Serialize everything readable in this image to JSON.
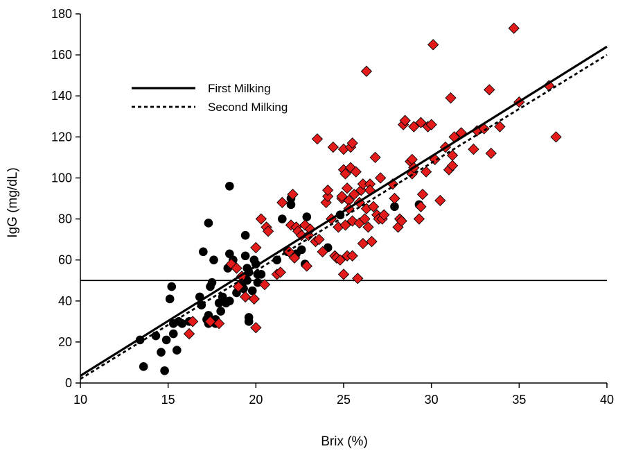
{
  "chart_data": {
    "type": "scatter",
    "xlabel": "Brix (%)",
    "ylabel": "IgG (mg/dL)",
    "xlim": [
      10,
      40
    ],
    "ylim": [
      0,
      180
    ],
    "x_ticks": [
      10,
      15,
      20,
      25,
      30,
      35,
      40
    ],
    "y_ticks": [
      0,
      20,
      40,
      60,
      80,
      100,
      120,
      140,
      160,
      180
    ],
    "grid": false,
    "legend_position": "upper-left",
    "legend": [
      {
        "label": "First Milking",
        "style": "solid"
      },
      {
        "label": "Second Milking",
        "style": "dotted"
      }
    ],
    "threshold": {
      "y": 50
    },
    "regression_lines": [
      {
        "style": "solid",
        "x": [
          10,
          40
        ],
        "y": [
          3.5,
          164
        ]
      },
      {
        "style": "dotted",
        "x": [
          10,
          40
        ],
        "y": [
          2,
          160
        ]
      }
    ],
    "series": [
      {
        "marker": "circle",
        "color": "#000000",
        "points": [
          [
            13.4,
            21
          ],
          [
            13.6,
            8
          ],
          [
            14.3,
            23
          ],
          [
            14.6,
            15
          ],
          [
            14.8,
            6
          ],
          [
            14.9,
            21
          ],
          [
            15.1,
            41
          ],
          [
            15.2,
            47
          ],
          [
            15.3,
            29
          ],
          [
            15.3,
            24
          ],
          [
            15.5,
            16
          ],
          [
            15.6,
            30
          ],
          [
            15.8,
            29
          ],
          [
            16.2,
            30
          ],
          [
            16.8,
            42
          ],
          [
            16.9,
            38
          ],
          [
            17.0,
            64
          ],
          [
            17.2,
            31
          ],
          [
            17.3,
            29
          ],
          [
            17.3,
            33
          ],
          [
            17.3,
            78
          ],
          [
            17.4,
            47
          ],
          [
            17.5,
            49
          ],
          [
            17.6,
            60
          ],
          [
            17.7,
            29
          ],
          [
            17.7,
            31
          ],
          [
            17.9,
            39
          ],
          [
            18.0,
            35
          ],
          [
            18.1,
            42
          ],
          [
            18.2,
            40
          ],
          [
            18.3,
            39
          ],
          [
            18.4,
            56
          ],
          [
            18.5,
            96
          ],
          [
            18.5,
            63
          ],
          [
            18.5,
            40
          ],
          [
            18.7,
            60
          ],
          [
            18.9,
            44
          ],
          [
            19.1,
            48
          ],
          [
            19.2,
            48
          ],
          [
            19.3,
            46
          ],
          [
            19.4,
            72
          ],
          [
            19.4,
            62
          ],
          [
            19.5,
            56
          ],
          [
            19.5,
            50
          ],
          [
            19.6,
            54
          ],
          [
            19.6,
            32
          ],
          [
            19.6,
            30
          ],
          [
            19.8,
            45
          ],
          [
            19.9,
            60
          ],
          [
            20.0,
            58
          ],
          [
            20.1,
            53
          ],
          [
            20.1,
            49
          ],
          [
            20.3,
            53
          ],
          [
            21.2,
            60
          ],
          [
            21.5,
            80
          ],
          [
            21.8,
            64
          ],
          [
            22.0,
            90
          ],
          [
            22.0,
            87
          ],
          [
            22.3,
            63
          ],
          [
            22.6,
            65
          ],
          [
            22.8,
            58
          ],
          [
            22.9,
            81
          ],
          [
            24.1,
            66
          ],
          [
            24.8,
            82
          ],
          [
            27.9,
            86
          ],
          [
            29.3,
            87
          ]
        ]
      },
      {
        "marker": "diamond",
        "color": "#e31b1b",
        "points": [
          [
            16.2,
            24
          ],
          [
            16.4,
            30
          ],
          [
            17.4,
            30
          ],
          [
            17.9,
            29
          ],
          [
            18.6,
            58
          ],
          [
            18.9,
            56
          ],
          [
            19.0,
            47
          ],
          [
            19.2,
            52
          ],
          [
            19.4,
            42
          ],
          [
            19.9,
            41
          ],
          [
            20.0,
            27
          ],
          [
            20.0,
            66
          ],
          [
            20.3,
            80
          ],
          [
            20.5,
            48
          ],
          [
            20.6,
            76
          ],
          [
            20.7,
            74
          ],
          [
            21.2,
            53
          ],
          [
            21.4,
            54
          ],
          [
            21.5,
            88
          ],
          [
            21.9,
            64
          ],
          [
            22.0,
            77
          ],
          [
            22.1,
            92
          ],
          [
            22.2,
            61
          ],
          [
            22.3,
            76
          ],
          [
            22.4,
            74
          ],
          [
            22.6,
            72
          ],
          [
            22.8,
            77
          ],
          [
            22.9,
            57
          ],
          [
            23.0,
            72
          ],
          [
            23.1,
            75
          ],
          [
            23.4,
            69
          ],
          [
            23.5,
            119
          ],
          [
            23.6,
            70
          ],
          [
            23.8,
            64
          ],
          [
            24.0,
            88
          ],
          [
            24.1,
            91
          ],
          [
            24.1,
            94
          ],
          [
            24.3,
            80
          ],
          [
            24.4,
            115
          ],
          [
            24.5,
            62
          ],
          [
            24.6,
            61
          ],
          [
            24.7,
            76
          ],
          [
            24.8,
            60
          ],
          [
            24.9,
            90
          ],
          [
            24.9,
            91
          ],
          [
            25.0,
            53
          ],
          [
            25.0,
            114
          ],
          [
            25.0,
            104
          ],
          [
            25.1,
            77
          ],
          [
            25.1,
            102
          ],
          [
            25.2,
            62
          ],
          [
            25.2,
            95
          ],
          [
            25.3,
            89
          ],
          [
            25.3,
            85
          ],
          [
            25.4,
            115
          ],
          [
            25.4,
            105
          ],
          [
            25.5,
            117
          ],
          [
            25.5,
            62
          ],
          [
            25.5,
            79
          ],
          [
            25.6,
            92
          ],
          [
            25.7,
            103
          ],
          [
            25.8,
            51
          ],
          [
            25.9,
            78
          ],
          [
            25.9,
            88
          ],
          [
            26.0,
            94
          ],
          [
            26.1,
            68
          ],
          [
            26.1,
            97
          ],
          [
            26.2,
            80
          ],
          [
            26.3,
            85
          ],
          [
            26.3,
            152
          ],
          [
            26.4,
            76
          ],
          [
            26.5,
            97
          ],
          [
            26.5,
            94
          ],
          [
            26.6,
            69
          ],
          [
            26.7,
            86
          ],
          [
            26.8,
            110
          ],
          [
            26.9,
            82
          ],
          [
            27.0,
            80
          ],
          [
            27.1,
            100
          ],
          [
            27.2,
            80
          ],
          [
            27.3,
            82
          ],
          [
            27.8,
            97
          ],
          [
            27.9,
            90
          ],
          [
            28.1,
            76
          ],
          [
            28.2,
            80
          ],
          [
            28.3,
            79
          ],
          [
            28.4,
            126
          ],
          [
            28.5,
            128
          ],
          [
            28.8,
            108
          ],
          [
            28.9,
            109
          ],
          [
            28.9,
            102
          ],
          [
            29.0,
            125
          ],
          [
            29.0,
            105
          ],
          [
            29.3,
            80
          ],
          [
            29.4,
            86
          ],
          [
            29.4,
            127
          ],
          [
            29.5,
            92
          ],
          [
            29.7,
            103
          ],
          [
            29.8,
            125
          ],
          [
            30.0,
            126
          ],
          [
            30.1,
            165
          ],
          [
            30.2,
            109
          ],
          [
            30.5,
            89
          ],
          [
            30.8,
            115
          ],
          [
            31.0,
            104
          ],
          [
            31.1,
            139
          ],
          [
            31.2,
            106
          ],
          [
            31.2,
            111
          ],
          [
            31.3,
            120
          ],
          [
            31.7,
            122
          ],
          [
            32.4,
            114
          ],
          [
            32.6,
            123
          ],
          [
            33.0,
            124
          ],
          [
            33.3,
            143
          ],
          [
            33.4,
            112
          ],
          [
            33.9,
            125
          ],
          [
            34.7,
            173
          ],
          [
            35.0,
            137
          ],
          [
            36.7,
            145
          ],
          [
            37.1,
            120
          ]
        ]
      }
    ]
  }
}
